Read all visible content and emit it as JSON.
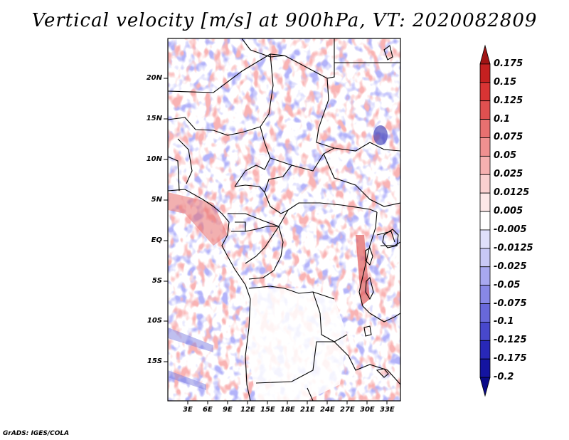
{
  "title": "Vertical velocity [m/s] at 900hPa, VT: 2020082809",
  "credit": "GrADS: IGES/COLA",
  "lat_labels": [
    "20N",
    "15N",
    "10N",
    "5N",
    "EQ",
    "5S",
    "10S",
    "15S"
  ],
  "lon_labels": [
    "3E",
    "6E",
    "9E",
    "12E",
    "15E",
    "18E",
    "21E",
    "24E",
    "27E",
    "30E",
    "33E"
  ],
  "colorbar": {
    "labels": [
      "0.175",
      "0.15",
      "0.125",
      "0.1",
      "0.075",
      "0.05",
      "0.025",
      "0.0125",
      "0.005",
      "-0.005",
      "-0.0125",
      "-0.025",
      "-0.05",
      "-0.075",
      "-0.1",
      "-0.125",
      "-0.175",
      "-0.2"
    ],
    "colors": [
      "#a01414",
      "#c42020",
      "#d83434",
      "#e05050",
      "#e87070",
      "#f09090",
      "#f6b0b0",
      "#fad0d0",
      "#fde8e8",
      "#ffffff",
      "#e0e0fb",
      "#c8c8f6",
      "#a8a8f0",
      "#8888e6",
      "#6868da",
      "#4848cc",
      "#2828b8",
      "#1414a0",
      "#0a0a88"
    ]
  }
}
